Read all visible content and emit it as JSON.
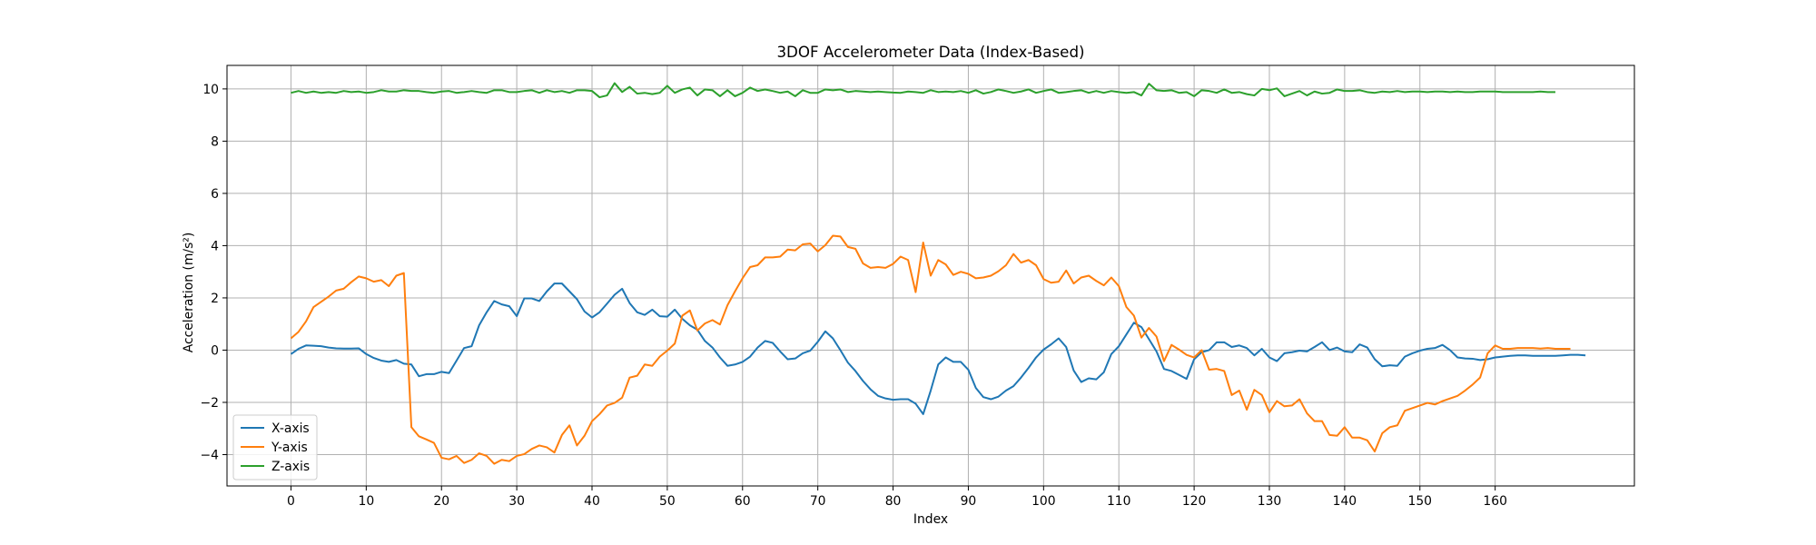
{
  "chart_data": {
    "type": "line",
    "title": "3DOF Accelerometer Data (Index-Based)",
    "xlabel": "Index",
    "ylabel": "Acceleration (m/s²)",
    "xlim": [
      -8.5,
      178.5
    ],
    "ylim": [
      -5.2,
      10.9
    ],
    "xticks": [
      0,
      10,
      20,
      30,
      40,
      50,
      60,
      70,
      80,
      90,
      100,
      110,
      120,
      130,
      140,
      150,
      160
    ],
    "yticks": [
      -4,
      -2,
      0,
      2,
      4,
      6,
      8,
      10
    ],
    "grid": true,
    "legend_position": "lower-left",
    "series": [
      {
        "name": "X-axis",
        "color": "#1f77b4",
        "values": [
          -0.15,
          0.05,
          0.18,
          0.17,
          0.15,
          0.1,
          0.07,
          0.06,
          0.06,
          0.07,
          -0.15,
          -0.3,
          -0.4,
          -0.45,
          -0.38,
          -0.52,
          -0.55,
          -1.0,
          -0.92,
          -0.92,
          -0.83,
          -0.88,
          -0.4,
          0.08,
          0.15,
          0.95,
          1.45,
          1.88,
          1.75,
          1.68,
          1.3,
          1.98,
          1.98,
          1.88,
          2.25,
          2.55,
          2.55,
          2.25,
          1.95,
          1.48,
          1.25,
          1.45,
          1.78,
          2.12,
          2.35,
          1.8,
          1.45,
          1.35,
          1.55,
          1.3,
          1.28,
          1.55,
          1.2,
          0.95,
          0.78,
          0.35,
          0.1,
          -0.28,
          -0.6,
          -0.55,
          -0.45,
          -0.25,
          0.1,
          0.35,
          0.28,
          -0.05,
          -0.35,
          -0.32,
          -0.12,
          -0.02,
          0.32,
          0.72,
          0.45,
          0.0,
          -0.48,
          -0.8,
          -1.18,
          -1.5,
          -1.75,
          -1.85,
          -1.9,
          -1.88,
          -1.88,
          -2.05,
          -2.45,
          -1.55,
          -0.55,
          -0.28,
          -0.45,
          -0.45,
          -0.75,
          -1.45,
          -1.8,
          -1.88,
          -1.78,
          -1.55,
          -1.38,
          -1.05,
          -0.68,
          -0.28,
          0.02,
          0.22,
          0.45,
          0.12,
          -0.78,
          -1.22,
          -1.08,
          -1.12,
          -0.85,
          -0.15,
          0.15,
          0.6,
          1.05,
          0.88,
          0.42,
          -0.05,
          -0.72,
          -0.8,
          -0.95,
          -1.1,
          -0.35,
          -0.08,
          0.0,
          0.3,
          0.3,
          0.12,
          0.18,
          0.08,
          -0.2,
          0.05,
          -0.28,
          -0.42,
          -0.12,
          -0.08,
          -0.02,
          -0.05,
          0.12,
          0.3,
          0.0,
          0.1,
          -0.05,
          -0.08,
          0.22,
          0.1,
          -0.35,
          -0.62,
          -0.58,
          -0.6,
          -0.25,
          -0.12,
          -0.02,
          0.05,
          0.08,
          0.2,
          0.0,
          -0.28,
          -0.32,
          -0.33,
          -0.38,
          -0.35,
          -0.28,
          -0.25,
          -0.22,
          -0.2,
          -0.2,
          -0.22,
          -0.22,
          -0.22,
          -0.22,
          -0.2,
          -0.18,
          -0.18,
          -0.2
        ]
      },
      {
        "name": "Y-axis",
        "color": "#ff7f0e",
        "values": [
          0.45,
          0.7,
          1.1,
          1.65,
          1.85,
          2.05,
          2.28,
          2.35,
          2.6,
          2.82,
          2.75,
          2.62,
          2.68,
          2.45,
          2.85,
          2.95,
          -2.95,
          -3.3,
          -3.42,
          -3.55,
          -4.12,
          -4.18,
          -4.05,
          -4.32,
          -4.2,
          -3.95,
          -4.05,
          -4.35,
          -4.2,
          -4.25,
          -4.05,
          -3.98,
          -3.78,
          -3.65,
          -3.72,
          -3.92,
          -3.25,
          -2.88,
          -3.65,
          -3.28,
          -2.72,
          -2.45,
          -2.12,
          -2.02,
          -1.82,
          -1.05,
          -0.98,
          -0.55,
          -0.6,
          -0.25,
          -0.02,
          0.25,
          1.32,
          1.52,
          0.75,
          1.02,
          1.15,
          0.98,
          1.72,
          2.25,
          2.75,
          3.18,
          3.25,
          3.55,
          3.55,
          3.58,
          3.85,
          3.82,
          4.05,
          4.08,
          3.78,
          4.02,
          4.38,
          4.35,
          3.95,
          3.88,
          3.32,
          3.15,
          3.18,
          3.15,
          3.3,
          3.58,
          3.45,
          2.22,
          4.12,
          2.85,
          3.45,
          3.28,
          2.88,
          3.0,
          2.92,
          2.75,
          2.78,
          2.85,
          3.02,
          3.25,
          3.68,
          3.35,
          3.45,
          3.25,
          2.72,
          2.58,
          2.62,
          3.05,
          2.55,
          2.78,
          2.85,
          2.65,
          2.48,
          2.78,
          2.45,
          1.65,
          1.32,
          0.48,
          0.85,
          0.52,
          -0.42,
          0.2,
          0.02,
          -0.18,
          -0.28,
          0.0,
          -0.75,
          -0.72,
          -0.8,
          -1.72,
          -1.55,
          -2.28,
          -1.52,
          -1.72,
          -2.38,
          -1.95,
          -2.15,
          -2.12,
          -1.88,
          -2.42,
          -2.72,
          -2.72,
          -3.25,
          -3.28,
          -2.95,
          -3.35,
          -3.35,
          -3.45,
          -3.88,
          -3.18,
          -2.95,
          -2.88,
          -2.32,
          -2.22,
          -2.12,
          -2.02,
          -2.08,
          -1.95,
          -1.85,
          -1.75,
          -1.55,
          -1.32,
          -1.05,
          -0.12,
          0.18,
          0.05,
          0.05,
          0.08,
          0.08,
          0.08,
          0.06,
          0.08,
          0.05,
          0.05,
          0.05
        ]
      },
      {
        "name": "Z-axis",
        "color": "#2ca02c",
        "values": [
          9.85,
          9.92,
          9.85,
          9.9,
          9.85,
          9.88,
          9.85,
          9.92,
          9.88,
          9.9,
          9.85,
          9.88,
          9.95,
          9.9,
          9.9,
          9.95,
          9.92,
          9.92,
          9.88,
          9.85,
          9.9,
          9.92,
          9.85,
          9.88,
          9.92,
          9.88,
          9.85,
          9.95,
          9.95,
          9.88,
          9.88,
          9.92,
          9.95,
          9.85,
          9.95,
          9.88,
          9.92,
          9.85,
          9.95,
          9.95,
          9.92,
          9.68,
          9.75,
          10.22,
          9.88,
          10.08,
          9.82,
          9.85,
          9.8,
          9.85,
          10.12,
          9.85,
          9.98,
          10.05,
          9.75,
          9.98,
          9.95,
          9.72,
          9.95,
          9.72,
          9.85,
          10.05,
          9.92,
          9.98,
          9.92,
          9.85,
          9.9,
          9.72,
          9.95,
          9.85,
          9.85,
          9.98,
          9.95,
          9.98,
          9.88,
          9.92,
          9.9,
          9.88,
          9.9,
          9.88,
          9.86,
          9.85,
          9.9,
          9.88,
          9.85,
          9.95,
          9.88,
          9.9,
          9.88,
          9.92,
          9.85,
          9.95,
          9.82,
          9.88,
          9.98,
          9.92,
          9.85,
          9.9,
          9.98,
          9.85,
          9.92,
          9.98,
          9.85,
          9.88,
          9.92,
          9.95,
          9.85,
          9.92,
          9.85,
          9.92,
          9.88,
          9.85,
          9.88,
          9.75,
          10.2,
          9.95,
          9.92,
          9.95,
          9.85,
          9.88,
          9.72,
          9.95,
          9.92,
          9.85,
          9.98,
          9.85,
          9.88,
          9.8,
          9.75,
          10.0,
          9.95,
          10.02,
          9.72,
          9.82,
          9.92,
          9.75,
          9.9,
          9.82,
          9.85,
          9.98,
          9.92,
          9.92,
          9.95,
          9.88,
          9.85,
          9.9,
          9.88,
          9.92,
          9.88,
          9.9,
          9.9,
          9.88,
          9.9,
          9.9,
          9.88,
          9.9,
          9.88,
          9.88,
          9.9,
          9.9,
          9.9,
          9.88,
          9.88,
          9.88,
          9.88,
          9.88,
          9.9,
          9.88,
          9.88
        ]
      }
    ]
  }
}
